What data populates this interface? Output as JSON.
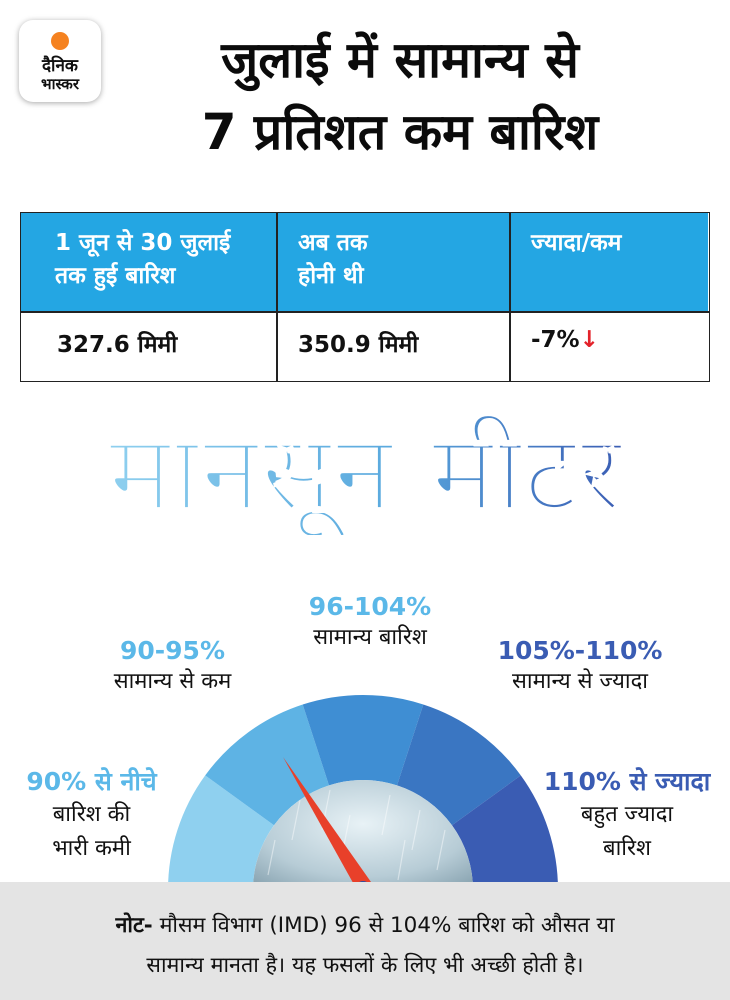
{
  "logo": {
    "line1": "दैनिक",
    "line2": "भास्कर"
  },
  "headline": {
    "line1": "जुलाई में सामान्य से",
    "line2": "7 प्रतिशत कम बारिश"
  },
  "table": {
    "headers": [
      {
        "line1": "1 जून से 30 जुलाई",
        "line2": "तक हुई बारिश"
      },
      {
        "line1": "अब तक",
        "line2": "होनी थी"
      },
      {
        "line1": "ज्यादा/कम",
        "line2": ""
      }
    ],
    "values": [
      "327.6 मिमी",
      "350.9 मिमी",
      "-7%"
    ],
    "arrow": "↓"
  },
  "meter_title": "मानसून मीटर",
  "gauge_labels": {
    "very_low": {
      "pct": "90% से नीचे",
      "line1": "बारिश की",
      "line2": "भारी कमी"
    },
    "below": {
      "pct": "90-95%",
      "line1": "सामान्य से कम"
    },
    "normal": {
      "pct": "96-104%",
      "line1": "सामान्य बारिश"
    },
    "above": {
      "pct": "105%-110%",
      "line1": "सामान्य से ज्यादा"
    },
    "very_high": {
      "pct": "110% से ज्यादा",
      "line1": "बहुत ज्यादा",
      "line2": "बारिश"
    }
  },
  "colors": {
    "header_blue": "#24a6e3",
    "seg1": "#8fd0ef",
    "seg2": "#5eb3e4",
    "seg3": "#3f8ed3",
    "seg4": "#3a76c2",
    "seg5": "#3a5cb3",
    "needle": "#e8402a",
    "down_arrow": "#e3222a",
    "light_label": "#5bb8e8",
    "dark_label": "#3a5cb3"
  },
  "note": {
    "prefix": "नोट-",
    "line1": "मौसम विभाग (IMD) 96 से 104% बारिश को औसत या",
    "line2": "सामान्य मानता है। यह फसलों के लिए भी अच्छी होती है।"
  }
}
